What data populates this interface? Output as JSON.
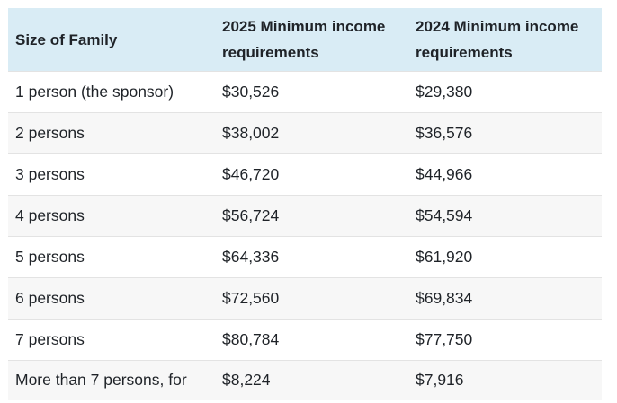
{
  "table": {
    "headers": [
      "Size of Family",
      "2025 Minimum income requirements",
      "2024 Minimum income requirements"
    ],
    "rows": [
      [
        "1 person (the sponsor)",
        "$30,526",
        "$29,380"
      ],
      [
        "2 persons",
        "$38,002",
        "$36,576"
      ],
      [
        "3 persons",
        "$46,720",
        "$44,966"
      ],
      [
        "4 persons",
        "$56,724",
        "$54,594"
      ],
      [
        "5 persons",
        "$64,336",
        "$61,920"
      ],
      [
        "6 persons",
        "$72,560",
        "$69,834"
      ],
      [
        "7 persons",
        "$80,784",
        "$77,750"
      ],
      [
        "More than 7 persons, for",
        "$8,224",
        "$7,916"
      ]
    ]
  },
  "colors": {
    "header_background": "#d9ecf5",
    "stripe_background": "#f7f7f7",
    "row_border": "#e3e3e3",
    "text": "#1f2328"
  }
}
